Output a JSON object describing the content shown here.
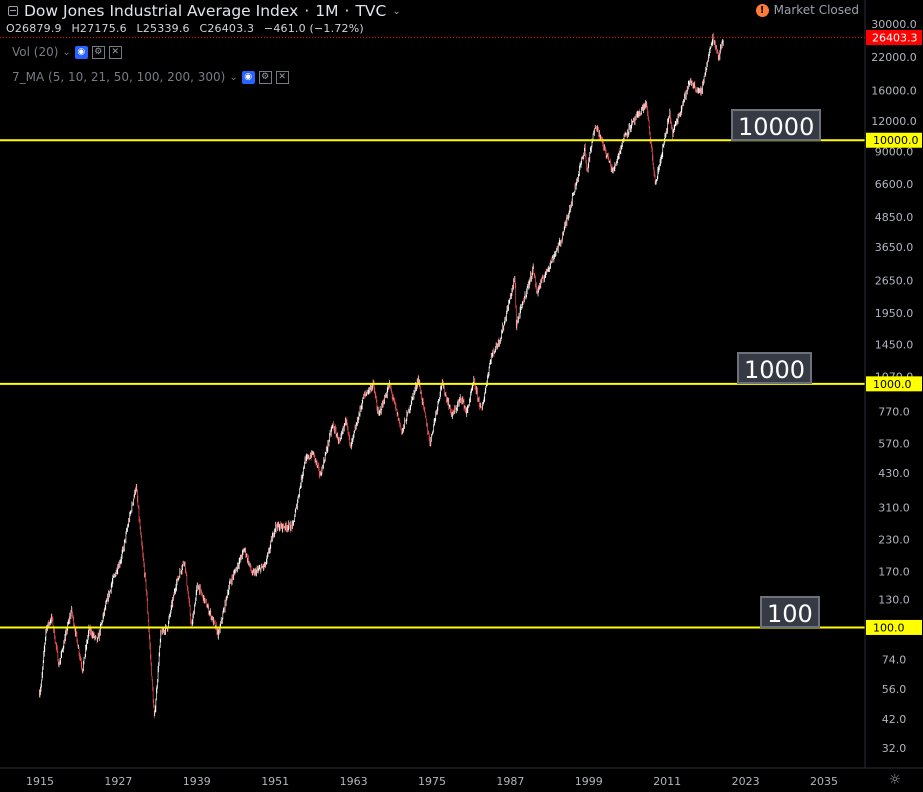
{
  "header": {
    "title": "Dow Jones Industrial Average Index",
    "sep1": "·",
    "interval": "1M",
    "sep2": "·",
    "exchange": "TVC"
  },
  "ohlc": {
    "open": "O26879.9",
    "high": "H27175.6",
    "low": "L25339.6",
    "close": "C26403.3",
    "change": "−461.0 (−1.72%)"
  },
  "indicators": [
    {
      "label": "Vol (20)"
    },
    {
      "label": "7_MA (5, 10, 21, 50, 100, 200, 300)"
    }
  ],
  "market_status": "Market Closed",
  "market_icon": "!",
  "level_labels": [
    "10000",
    "1000",
    "100"
  ],
  "colors": {
    "background": "#000000",
    "level_line": "#ffff00",
    "up_candle": "#ffffff",
    "down_candle": "#ef5350",
    "last_price": "#ff0000"
  },
  "chart_data": {
    "type": "candlestick",
    "scale": "log",
    "ylim": [
      28,
      33500
    ],
    "xlim": [
      1911.5,
      2041
    ],
    "grid": false,
    "y_ticks": [
      "30000.0",
      "22000.0",
      "16000.0",
      "12000.0",
      "9000.0",
      "6600.0",
      "4850.0",
      "3650.0",
      "2650.0",
      "1950.0",
      "1450.0",
      "1070.0",
      "770.0",
      "570.0",
      "430.0",
      "310.0",
      "230.0",
      "170.0",
      "130.0",
      "74.0",
      "56.0",
      "42.0",
      "32.0"
    ],
    "x_ticks": [
      "1915",
      "1927",
      "1939",
      "1951",
      "1963",
      "1975",
      "1987",
      "1999",
      "2011",
      "2023",
      "2035"
    ],
    "horizontal_levels": [
      {
        "value": 10000,
        "label": "10000.0"
      },
      {
        "value": 1000,
        "label": "1000.0"
      },
      {
        "value": 100,
        "label": "100.0"
      }
    ],
    "last_price": {
      "value": 26403.3,
      "label": "26403.3"
    },
    "price_path": [
      [
        1914.9,
        54
      ],
      [
        1915.2,
        58
      ],
      [
        1915.9,
        98
      ],
      [
        1916.8,
        110
      ],
      [
        1917.9,
        70
      ],
      [
        1919.8,
        118
      ],
      [
        1921.5,
        67
      ],
      [
        1922.5,
        98
      ],
      [
        1923.8,
        88
      ],
      [
        1924.9,
        118
      ],
      [
        1926.2,
        158
      ],
      [
        1927.5,
        195
      ],
      [
        1928.9,
        300
      ],
      [
        1929.7,
        380
      ],
      [
        1930.4,
        240
      ],
      [
        1931.3,
        140
      ],
      [
        1932.5,
        42
      ],
      [
        1933.5,
        95
      ],
      [
        1934.5,
        100
      ],
      [
        1935.8,
        150
      ],
      [
        1937.1,
        190
      ],
      [
        1938.2,
        100
      ],
      [
        1939.1,
        150
      ],
      [
        1941.0,
        115
      ],
      [
        1942.3,
        93
      ],
      [
        1944.0,
        150
      ],
      [
        1946.3,
        210
      ],
      [
        1947.5,
        165
      ],
      [
        1949.5,
        180
      ],
      [
        1951.0,
        260
      ],
      [
        1953.7,
        260
      ],
      [
        1955.5,
        480
      ],
      [
        1956.8,
        520
      ],
      [
        1957.9,
        420
      ],
      [
        1959.8,
        680
      ],
      [
        1960.9,
        570
      ],
      [
        1961.9,
        730
      ],
      [
        1962.5,
        540
      ],
      [
        1964.5,
        880
      ],
      [
        1966.0,
        1000
      ],
      [
        1966.8,
        740
      ],
      [
        1968.5,
        990
      ],
      [
        1970.4,
        630
      ],
      [
        1972.9,
        1050
      ],
      [
        1974.7,
        570
      ],
      [
        1976.5,
        1010
      ],
      [
        1978.1,
        740
      ],
      [
        1979.5,
        880
      ],
      [
        1980.3,
        760
      ],
      [
        1981.4,
        1020
      ],
      [
        1982.6,
        770
      ],
      [
        1984.0,
        1280
      ],
      [
        1985.5,
        1550
      ],
      [
        1987.7,
        2720
      ],
      [
        1987.9,
        1740
      ],
      [
        1990.5,
        2990
      ],
      [
        1991.0,
        2370
      ],
      [
        1994.8,
        3900
      ],
      [
        1996.5,
        5800
      ],
      [
        1998.4,
        9300
      ],
      [
        1998.7,
        7400
      ],
      [
        2000.0,
        11700
      ],
      [
        2002.7,
        7400
      ],
      [
        2004.5,
        10500
      ],
      [
        2007.8,
        14200
      ],
      [
        2009.2,
        6550
      ],
      [
        2011.4,
        12800
      ],
      [
        2011.8,
        10600
      ],
      [
        2014.5,
        17500
      ],
      [
        2016.1,
        15500
      ],
      [
        2018.0,
        26600
      ],
      [
        2018.9,
        22000
      ],
      [
        2019.6,
        26400
      ]
    ]
  }
}
